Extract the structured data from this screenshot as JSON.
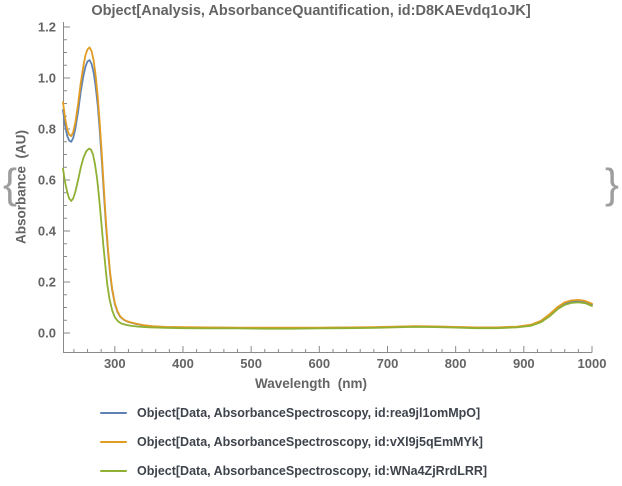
{
  "braces": {
    "left": "{",
    "right": "}"
  },
  "chart_data": {
    "type": "line",
    "title": "Object[Analysis, AbsorbanceQuantification, id:D8KAEvdq1oJK]",
    "xlabel": "Wavelength  (nm)",
    "ylabel": "Absorbance  (AU)",
    "xlim": [
      224,
      1000
    ],
    "ylim": [
      -0.075,
      1.22
    ],
    "grid": false,
    "legend_position": "below",
    "x_ticks": [
      300,
      400,
      500,
      600,
      700,
      800,
      900,
      1000
    ],
    "x_minor_step": 20,
    "y_ticks": [
      "0.0",
      "0.2",
      "0.4",
      "0.6",
      "0.8",
      "1.0",
      "1.2"
    ],
    "y_minor_step": 0.05,
    "axis_color": "#8a8a8a",
    "series": [
      {
        "name": "Object[Data, AbsorbanceSpectroscopy, id:rea9jl1omMpO]",
        "color": "#5E81B5",
        "points": [
          [
            224,
            0.875
          ],
          [
            227,
            0.815
          ],
          [
            230,
            0.775
          ],
          [
            233,
            0.755
          ],
          [
            236,
            0.75
          ],
          [
            239,
            0.765
          ],
          [
            242,
            0.8
          ],
          [
            246,
            0.865
          ],
          [
            250,
            0.945
          ],
          [
            254,
            1.01
          ],
          [
            257,
            1.045
          ],
          [
            260,
            1.065
          ],
          [
            263,
            1.07
          ],
          [
            266,
            1.055
          ],
          [
            269,
            1.02
          ],
          [
            272,
            0.965
          ],
          [
            275,
            0.89
          ],
          [
            278,
            0.79
          ],
          [
            281,
            0.67
          ],
          [
            284,
            0.545
          ],
          [
            287,
            0.425
          ],
          [
            290,
            0.32
          ],
          [
            293,
            0.235
          ],
          [
            296,
            0.17
          ],
          [
            300,
            0.115
          ],
          [
            304,
            0.082
          ],
          [
            308,
            0.063
          ],
          [
            313,
            0.052
          ],
          [
            318,
            0.045
          ],
          [
            324,
            0.04
          ],
          [
            332,
            0.035
          ],
          [
            342,
            0.03
          ],
          [
            355,
            0.026
          ],
          [
            375,
            0.023
          ],
          [
            400,
            0.022
          ],
          [
            440,
            0.021
          ],
          [
            480,
            0.02
          ],
          [
            520,
            0.02
          ],
          [
            560,
            0.02
          ],
          [
            600,
            0.02
          ],
          [
            640,
            0.021
          ],
          [
            680,
            0.022
          ],
          [
            710,
            0.024
          ],
          [
            740,
            0.026
          ],
          [
            770,
            0.025
          ],
          [
            800,
            0.023
          ],
          [
            830,
            0.021
          ],
          [
            860,
            0.021
          ],
          [
            890,
            0.024
          ],
          [
            910,
            0.03
          ],
          [
            925,
            0.045
          ],
          [
            938,
            0.07
          ],
          [
            950,
            0.098
          ],
          [
            960,
            0.115
          ],
          [
            970,
            0.123
          ],
          [
            980,
            0.125
          ],
          [
            990,
            0.122
          ],
          [
            1000,
            0.112
          ]
        ]
      },
      {
        "name": "Object[Data, AbsorbanceSpectroscopy, id:vXl9j5qEmMYk]",
        "color": "#E19C24",
        "points": [
          [
            224,
            0.905
          ],
          [
            227,
            0.845
          ],
          [
            230,
            0.8
          ],
          [
            233,
            0.778
          ],
          [
            236,
            0.772
          ],
          [
            239,
            0.788
          ],
          [
            242,
            0.825
          ],
          [
            246,
            0.895
          ],
          [
            250,
            0.98
          ],
          [
            254,
            1.05
          ],
          [
            257,
            1.09
          ],
          [
            260,
            1.112
          ],
          [
            263,
            1.12
          ],
          [
            266,
            1.105
          ],
          [
            269,
            1.068
          ],
          [
            272,
            1.008
          ],
          [
            275,
            0.925
          ],
          [
            278,
            0.82
          ],
          [
            281,
            0.695
          ],
          [
            284,
            0.565
          ],
          [
            287,
            0.44
          ],
          [
            290,
            0.33
          ],
          [
            293,
            0.24
          ],
          [
            296,
            0.175
          ],
          [
            300,
            0.118
          ],
          [
            304,
            0.085
          ],
          [
            308,
            0.065
          ],
          [
            313,
            0.053
          ],
          [
            318,
            0.046
          ],
          [
            324,
            0.041
          ],
          [
            332,
            0.036
          ],
          [
            342,
            0.031
          ],
          [
            355,
            0.027
          ],
          [
            375,
            0.024
          ],
          [
            400,
            0.023
          ],
          [
            440,
            0.022
          ],
          [
            480,
            0.021
          ],
          [
            520,
            0.021
          ],
          [
            560,
            0.021
          ],
          [
            600,
            0.021
          ],
          [
            640,
            0.022
          ],
          [
            680,
            0.023
          ],
          [
            710,
            0.025
          ],
          [
            740,
            0.027
          ],
          [
            770,
            0.026
          ],
          [
            800,
            0.024
          ],
          [
            830,
            0.022
          ],
          [
            860,
            0.022
          ],
          [
            890,
            0.025
          ],
          [
            910,
            0.032
          ],
          [
            925,
            0.048
          ],
          [
            938,
            0.074
          ],
          [
            950,
            0.103
          ],
          [
            960,
            0.12
          ],
          [
            970,
            0.128
          ],
          [
            980,
            0.13
          ],
          [
            990,
            0.126
          ],
          [
            1000,
            0.115
          ]
        ]
      },
      {
        "name": "Object[Data, AbsorbanceSpectroscopy, id:WNa4ZjRrdLRR]",
        "color": "#8FB032",
        "points": [
          [
            224,
            0.645
          ],
          [
            227,
            0.592
          ],
          [
            230,
            0.555
          ],
          [
            233,
            0.528
          ],
          [
            236,
            0.518
          ],
          [
            239,
            0.528
          ],
          [
            242,
            0.553
          ],
          [
            246,
            0.598
          ],
          [
            250,
            0.648
          ],
          [
            254,
            0.688
          ],
          [
            258,
            0.712
          ],
          [
            262,
            0.723
          ],
          [
            265,
            0.72
          ],
          [
            268,
            0.7
          ],
          [
            271,
            0.662
          ],
          [
            274,
            0.605
          ],
          [
            277,
            0.53
          ],
          [
            280,
            0.44
          ],
          [
            283,
            0.35
          ],
          [
            286,
            0.265
          ],
          [
            289,
            0.19
          ],
          [
            292,
            0.135
          ],
          [
            296,
            0.09
          ],
          [
            300,
            0.062
          ],
          [
            305,
            0.045
          ],
          [
            310,
            0.037
          ],
          [
            316,
            0.032
          ],
          [
            324,
            0.028
          ],
          [
            334,
            0.025
          ],
          [
            350,
            0.022
          ],
          [
            375,
            0.02
          ],
          [
            400,
            0.019
          ],
          [
            440,
            0.018
          ],
          [
            480,
            0.018
          ],
          [
            520,
            0.017
          ],
          [
            560,
            0.017
          ],
          [
            600,
            0.018
          ],
          [
            640,
            0.019
          ],
          [
            680,
            0.02
          ],
          [
            710,
            0.022
          ],
          [
            740,
            0.024
          ],
          [
            770,
            0.023
          ],
          [
            800,
            0.021
          ],
          [
            830,
            0.019
          ],
          [
            860,
            0.019
          ],
          [
            890,
            0.022
          ],
          [
            910,
            0.028
          ],
          [
            925,
            0.042
          ],
          [
            938,
            0.066
          ],
          [
            950,
            0.094
          ],
          [
            960,
            0.11
          ],
          [
            970,
            0.118
          ],
          [
            980,
            0.12
          ],
          [
            990,
            0.117
          ],
          [
            1000,
            0.106
          ]
        ]
      }
    ]
  },
  "legend": {
    "items": [
      {
        "label": "Object[Data, AbsorbanceSpectroscopy, id:rea9jl1omMpO]",
        "color": "#5E81B5"
      },
      {
        "label": "Object[Data, AbsorbanceSpectroscopy, id:vXl9j5qEmMYk]",
        "color": "#E19C24"
      },
      {
        "label": "Object[Data, AbsorbanceSpectroscopy, id:WNa4ZjRrdLRR]",
        "color": "#8FB032"
      }
    ]
  }
}
